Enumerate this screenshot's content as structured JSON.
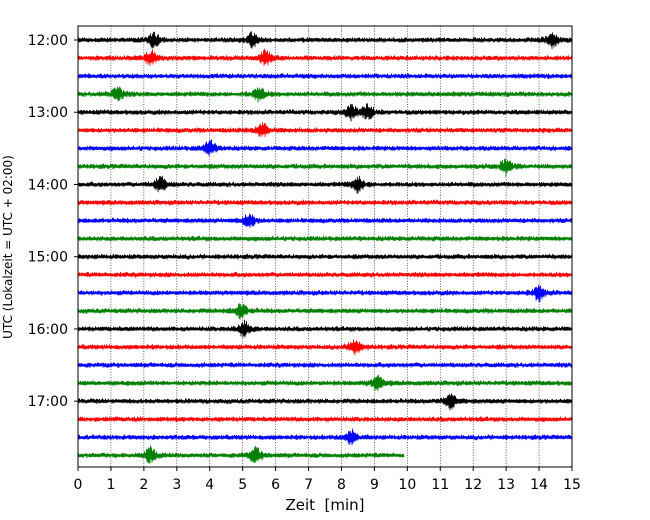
{
  "chart_data": {
    "type": "line",
    "title": "",
    "xlabel": "Zeit  [min]",
    "ylabel": "UTC (Lokalzeit = UTC + 02:00)",
    "xlim": [
      0,
      15
    ],
    "x_ticks": [
      0,
      1,
      2,
      3,
      4,
      5,
      6,
      7,
      8,
      9,
      10,
      11,
      12,
      13,
      14,
      15
    ],
    "x_grid": true,
    "y_ticks": [
      "12:00",
      "13:00",
      "14:00",
      "15:00",
      "16:00",
      "17:00"
    ],
    "trace_interval_min": 15,
    "color_cycle": [
      "#000000",
      "#ff0000",
      "#0000ff",
      "#008000"
    ],
    "traces": [
      {
        "start": "12:00",
        "color": "#000000",
        "duration_min": 15,
        "events_min": [
          2.3,
          5.3,
          14.4
        ]
      },
      {
        "start": "12:15",
        "color": "#ff0000",
        "duration_min": 15,
        "events_min": [
          2.2,
          5.7
        ]
      },
      {
        "start": "12:30",
        "color": "#0000ff",
        "duration_min": 15,
        "events_min": []
      },
      {
        "start": "12:45",
        "color": "#008000",
        "duration_min": 15,
        "events_min": [
          1.2,
          5.5
        ]
      },
      {
        "start": "13:00",
        "color": "#000000",
        "duration_min": 15,
        "events_min": [
          8.3,
          8.8
        ]
      },
      {
        "start": "13:15",
        "color": "#ff0000",
        "duration_min": 15,
        "events_min": [
          5.6
        ]
      },
      {
        "start": "13:30",
        "color": "#0000ff",
        "duration_min": 15,
        "events_min": [
          4.0
        ]
      },
      {
        "start": "13:45",
        "color": "#008000",
        "duration_min": 15,
        "events_min": [
          13.0
        ]
      },
      {
        "start": "14:00",
        "color": "#000000",
        "duration_min": 15,
        "events_min": [
          2.5,
          8.5
        ]
      },
      {
        "start": "14:15",
        "color": "#ff0000",
        "duration_min": 15,
        "events_min": []
      },
      {
        "start": "14:30",
        "color": "#0000ff",
        "duration_min": 15,
        "events_min": [
          5.2
        ]
      },
      {
        "start": "14:45",
        "color": "#008000",
        "duration_min": 15,
        "events_min": []
      },
      {
        "start": "15:00",
        "color": "#000000",
        "duration_min": 15,
        "events_min": []
      },
      {
        "start": "15:15",
        "color": "#ff0000",
        "duration_min": 15,
        "events_min": []
      },
      {
        "start": "15:30",
        "color": "#0000ff",
        "duration_min": 15,
        "events_min": [
          14.0
        ]
      },
      {
        "start": "15:45",
        "color": "#008000",
        "duration_min": 15,
        "events_min": [
          4.95
        ]
      },
      {
        "start": "16:00",
        "color": "#000000",
        "duration_min": 15,
        "events_min": [
          5.05
        ]
      },
      {
        "start": "16:15",
        "color": "#ff0000",
        "duration_min": 15,
        "events_min": [
          8.4
        ]
      },
      {
        "start": "16:30",
        "color": "#0000ff",
        "duration_min": 15,
        "events_min": []
      },
      {
        "start": "16:45",
        "color": "#008000",
        "duration_min": 15,
        "events_min": [
          9.1
        ]
      },
      {
        "start": "17:00",
        "color": "#000000",
        "duration_min": 15,
        "events_min": [
          11.3
        ]
      },
      {
        "start": "17:15",
        "color": "#ff0000",
        "duration_min": 15,
        "events_min": []
      },
      {
        "start": "17:30",
        "color": "#0000ff",
        "duration_min": 15,
        "events_min": [
          8.3
        ]
      },
      {
        "start": "17:45",
        "color": "#008000",
        "duration_min": 9.9,
        "events_min": [
          2.2,
          5.4
        ]
      }
    ]
  }
}
